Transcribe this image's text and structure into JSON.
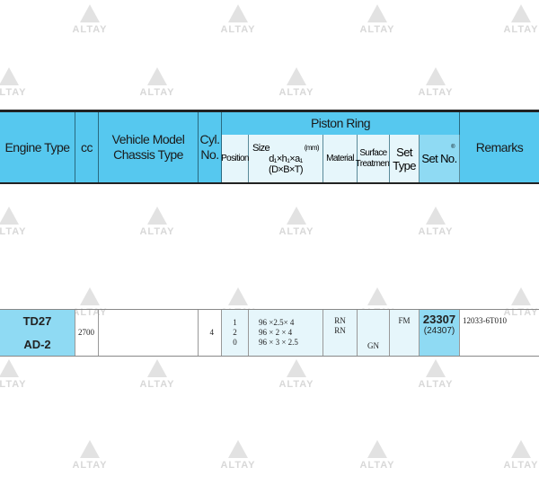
{
  "watermark": "ALTAY",
  "header": {
    "engine_type": "Engine Type",
    "cc": "cc",
    "vehicle_model": "Vehicle Model",
    "chassis_type": "Chassis Type",
    "cyl": "Cyl.",
    "cyl_no": "No.",
    "piston_ring": "Piston Ring",
    "position": "Position",
    "size": "Size",
    "size_unit": "(mm)",
    "size_formula": "d₁×h₁×a₁",
    "size_formula2": "(D×B×T)",
    "material": "Material",
    "surface": "Surface",
    "treatment": "Treatment",
    "set": "Set",
    "type": "Type",
    "set_no": "Set No.",
    "set_no_mark": "®",
    "remarks": "Remarks"
  },
  "row": {
    "engine_type_1": "TD27",
    "engine_type_2": "AD-2",
    "cc": "2700",
    "vehicle_model": "",
    "cyl": "4",
    "positions": [
      "1",
      "2",
      "0"
    ],
    "sizes": [
      "96 ×2.5× 4",
      "96 × 2 × 4",
      "96 × 3 × 2.5"
    ],
    "materials": [
      "RN",
      "RN",
      ""
    ],
    "surfaces": [
      "",
      "",
      "GN"
    ],
    "set_type": "FM",
    "set_no": "23307",
    "set_no_alt": "(24307)",
    "remarks": "12033-6T010"
  },
  "colors": {
    "header_blue": "#56c8ef",
    "light_blue": "#e6f6fb"
  }
}
